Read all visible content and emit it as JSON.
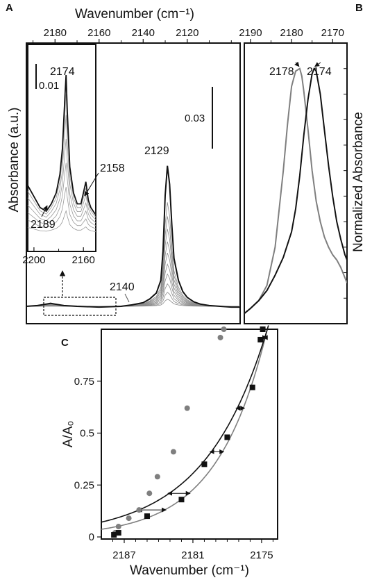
{
  "panel_labels": {
    "a": "A",
    "b": "B",
    "c": "C"
  },
  "chart_data": [
    {
      "panel": "A",
      "type": "line",
      "title": "",
      "xlabel": "Wavenumber (cm⁻¹)",
      "ylabel": "Absorbance (a.u.)",
      "x_ticks": [
        "2180",
        "2160",
        "2140",
        "2120"
      ],
      "x_tick_values": [
        2180,
        2160,
        2140,
        2120
      ],
      "xlim": [
        2193,
        2096
      ],
      "scale_bar": "0.03",
      "peak_labels": [
        "2129",
        "2140"
      ],
      "main_series": {
        "name": "",
        "x": [
          2193,
          2188,
          2184,
          2182,
          2180,
          2176,
          2170,
          2160,
          2150,
          2145,
          2140,
          2137,
          2134,
          2132,
          2131,
          2130,
          2129,
          2128,
          2127,
          2126,
          2124,
          2122,
          2120,
          2117,
          2114,
          2110,
          2105,
          2100,
          2096
        ],
        "y": [
          0.0,
          0.001,
          0.003,
          0.004,
          0.003,
          0.001,
          0.0,
          -0.001,
          0.0,
          0.002,
          0.005,
          0.01,
          0.018,
          0.035,
          0.075,
          0.15,
          0.19,
          0.165,
          0.11,
          0.065,
          0.035,
          0.02,
          0.012,
          0.006,
          0.003,
          0.001,
          0.0,
          -0.001,
          -0.001
        ]
      },
      "family_scales": [
        0.05,
        0.1,
        0.16,
        0.23,
        0.3,
        0.38,
        0.46,
        0.55,
        0.64,
        0.74
      ],
      "inset": {
        "x_ticks": [
          "2200",
          "2160"
        ],
        "x_tick_values": [
          2200,
          2160
        ],
        "xlim": [
          2205,
          2150
        ],
        "scale_bar": "0.01",
        "peak_labels": [
          "2174",
          "2158",
          "2189"
        ],
        "main_series": {
          "name": "",
          "x": [
            2205,
            2200,
            2195,
            2190,
            2186,
            2182,
            2179,
            2177,
            2175,
            2174,
            2173,
            2171,
            2168,
            2165,
            2162,
            2160,
            2158,
            2156,
            2154,
            2152,
            2150
          ],
          "y": [
            0.01,
            0.007,
            0.004,
            0.003,
            0.005,
            0.008,
            0.013,
            0.02,
            0.034,
            0.04,
            0.03,
            0.015,
            0.008,
            0.005,
            0.005,
            0.008,
            0.011,
            0.006,
            0.004,
            0.003,
            0.002
          ]
        }
      }
    },
    {
      "panel": "B",
      "type": "line",
      "title": "",
      "xlabel": "",
      "ylabel": "Normalized Absorbance",
      "x_ticks": [
        "2190",
        "2180",
        "2170"
      ],
      "x_tick_values": [
        2190,
        2180,
        2170
      ],
      "xlim": [
        2191.5,
        2166.5
      ],
      "ylim": [
        0,
        1.1
      ],
      "peak_labels": [
        "2178",
        "2174"
      ],
      "series": [
        {
          "name": "",
          "color": "#7f7f7f",
          "x": [
            2191.5,
            2190,
            2188,
            2186,
            2184,
            2183,
            2182,
            2181,
            2180,
            2179,
            2178,
            2177.5,
            2177,
            2176,
            2175,
            2174,
            2173,
            2172,
            2171,
            2170,
            2169,
            2168,
            2167,
            2166.5
          ],
          "y": [
            0.04,
            0.06,
            0.09,
            0.15,
            0.3,
            0.45,
            0.6,
            0.78,
            0.93,
            0.99,
            1.0,
            0.97,
            0.91,
            0.76,
            0.6,
            0.48,
            0.4,
            0.34,
            0.3,
            0.27,
            0.25,
            0.22,
            0.18,
            0.16
          ]
        },
        {
          "name": "",
          "color": "#111111",
          "x": [
            2191.5,
            2190,
            2188,
            2186,
            2184,
            2182,
            2180,
            2179,
            2178,
            2177,
            2176,
            2175,
            2174.5,
            2174,
            2173,
            2172,
            2171,
            2170,
            2169,
            2168,
            2167,
            2166.5
          ],
          "y": [
            0.04,
            0.06,
            0.09,
            0.13,
            0.19,
            0.26,
            0.36,
            0.45,
            0.58,
            0.74,
            0.88,
            0.98,
            1.0,
            0.99,
            0.9,
            0.76,
            0.62,
            0.5,
            0.4,
            0.33,
            0.27,
            0.25
          ]
        }
      ]
    },
    {
      "panel": "C",
      "type": "scatter",
      "title": "",
      "xlabel": "Wavenumber (cm⁻¹)",
      "ylabel": "A/A₀",
      "x_ticks": [
        "2187",
        "2181",
        "2175"
      ],
      "x_tick_values": [
        2187,
        2181,
        2175
      ],
      "y_ticks": [
        "0",
        "0.25",
        "0.5",
        "0.75"
      ],
      "y_tick_values": [
        0,
        0.25,
        0.5,
        0.75
      ],
      "xlim": [
        2189,
        2173.6
      ],
      "ylim": [
        -0.01,
        1.0
      ],
      "series": [
        {
          "name": "",
          "marker": "circle",
          "color": "#7f7f7f",
          "x": [
            2187.8,
            2187.5,
            2186.6,
            2185.7,
            2184.8,
            2184.1,
            2182.7,
            2181.5,
            2178.6,
            2178.3
          ],
          "y": [
            0.02,
            0.05,
            0.09,
            0.13,
            0.21,
            0.29,
            0.41,
            0.62,
            0.96,
            1.0
          ],
          "fit": {
            "a": 2191.5,
            "k": 0.2275
          }
        },
        {
          "name": "",
          "marker": "square",
          "color": "#111111",
          "x": [
            2187.9,
            2187.5,
            2185.0,
            2182.0,
            2180.0,
            2178.0,
            2175.8,
            2175.1,
            2174.9
          ],
          "y": [
            0.01,
            0.02,
            0.1,
            0.18,
            0.35,
            0.48,
            0.72,
            0.95,
            1.0
          ],
          "fit": {
            "a": 2192.5,
            "k": 0.1822
          }
        }
      ],
      "arrows_y": [
        0.96,
        0.62,
        0.41,
        0.21,
        0.13
      ]
    }
  ]
}
